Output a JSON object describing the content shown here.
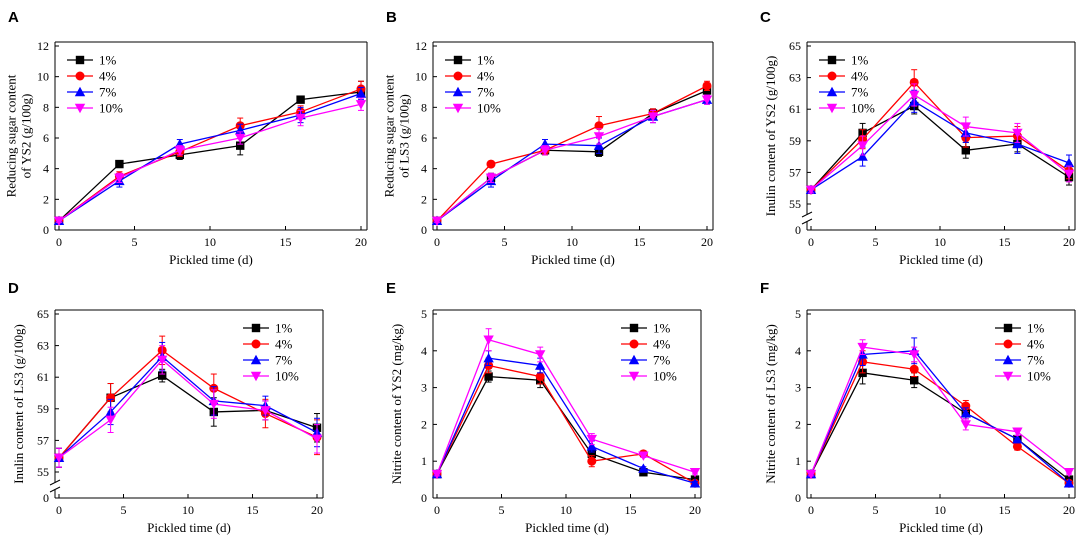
{
  "colors": {
    "s1": "#000000",
    "s4": "#ff0000",
    "s7": "#0000ff",
    "s10": "#ff00ff"
  },
  "chart_data": [
    {
      "type": "line",
      "letter": "A",
      "title": "",
      "xlabel": "Pickled time (d)",
      "ylabel": [
        "Reducing sugar content",
        "of YS2 (g/100g)"
      ],
      "x": [
        0,
        4,
        8,
        12,
        16,
        20
      ],
      "xlim": [
        0,
        20
      ],
      "xticks": [
        0,
        5,
        10,
        15,
        20
      ],
      "ylim": [
        0,
        12
      ],
      "yticks": [
        0,
        2,
        4,
        6,
        8,
        10,
        12
      ],
      "legend": "top-left",
      "series": [
        {
          "name": "1%",
          "values": [
            0.6,
            4.3,
            4.9,
            5.5,
            8.5,
            9.0
          ],
          "err": [
            0.1,
            0.2,
            0.3,
            0.6,
            0.2,
            0.7
          ]
        },
        {
          "name": "4%",
          "values": [
            0.6,
            3.5,
            5.1,
            6.8,
            7.7,
            9.2
          ],
          "err": [
            0.1,
            0.3,
            0.3,
            0.5,
            0.4,
            0.5
          ]
        },
        {
          "name": "7%",
          "values": [
            0.6,
            3.2,
            5.6,
            6.5,
            7.5,
            8.9
          ],
          "err": [
            0.1,
            0.4,
            0.3,
            0.4,
            0.5,
            0.4
          ]
        },
        {
          "name": "10%",
          "values": [
            0.6,
            3.4,
            5.2,
            6.0,
            7.3,
            8.2
          ],
          "err": [
            0.1,
            0.3,
            0.3,
            0.4,
            0.5,
            0.4
          ]
        }
      ]
    },
    {
      "type": "line",
      "letter": "B",
      "title": "",
      "xlabel": "Pickled time (d)",
      "ylabel": [
        "Reducing sugar content",
        "of LS3 (g/100g)"
      ],
      "x": [
        0,
        4,
        8,
        12,
        16,
        20
      ],
      "xlim": [
        0,
        20
      ],
      "xticks": [
        0,
        5,
        10,
        15,
        20
      ],
      "ylim": [
        0,
        12
      ],
      "yticks": [
        0,
        2,
        4,
        6,
        8,
        10,
        12
      ],
      "legend": "top-left",
      "series": [
        {
          "name": "1%",
          "values": [
            0.6,
            3.4,
            5.2,
            5.1,
            7.6,
            9.1
          ],
          "err": [
            0.1,
            0.3,
            0.3,
            0.3,
            0.3,
            0.4
          ]
        },
        {
          "name": "4%",
          "values": [
            0.6,
            4.3,
            5.2,
            6.8,
            7.6,
            9.4
          ],
          "err": [
            0.1,
            0.2,
            0.3,
            0.6,
            0.3,
            0.3
          ]
        },
        {
          "name": "7%",
          "values": [
            0.6,
            3.2,
            5.6,
            5.5,
            7.4,
            8.5
          ],
          "err": [
            0.1,
            0.4,
            0.3,
            0.5,
            0.4,
            0.3
          ]
        },
        {
          "name": "10%",
          "values": [
            0.6,
            3.4,
            5.2,
            6.1,
            7.4,
            8.5
          ],
          "err": [
            0.1,
            0.3,
            0.3,
            0.5,
            0.4,
            0.3
          ]
        }
      ]
    },
    {
      "type": "line",
      "letter": "C",
      "title": "",
      "xlabel": "Pickled time (d)",
      "ylabel": [
        "Inulin content of YS2 (g/100g)"
      ],
      "x": [
        0,
        4,
        8,
        12,
        16,
        20
      ],
      "xlim": [
        0,
        20
      ],
      "xticks": [
        0,
        5,
        10,
        15,
        20
      ],
      "ylim": [
        55,
        65
      ],
      "yticks": [
        55,
        57,
        59,
        61,
        63,
        65
      ],
      "broken_axis": {
        "bottom_label": "0"
      },
      "legend": "top-left",
      "series": [
        {
          "name": "1%",
          "values": [
            55.9,
            59.5,
            61.2,
            58.4,
            58.8,
            56.7
          ],
          "err": [
            0.2,
            0.6,
            0.5,
            0.5,
            0.5,
            0.5
          ]
        },
        {
          "name": "4%",
          "values": [
            55.9,
            59.1,
            62.7,
            59.2,
            59.3,
            57.1
          ],
          "err": [
            0.2,
            0.6,
            0.8,
            0.6,
            0.6,
            0.5
          ]
        },
        {
          "name": "7%",
          "values": [
            55.9,
            58.0,
            61.5,
            59.5,
            58.8,
            57.6
          ],
          "err": [
            0.2,
            0.6,
            0.7,
            0.6,
            0.6,
            0.5
          ]
        },
        {
          "name": "10%",
          "values": [
            55.9,
            58.7,
            61.9,
            59.9,
            59.5,
            56.9
          ],
          "err": [
            0.2,
            0.6,
            0.7,
            0.6,
            0.6,
            0.5
          ]
        }
      ]
    },
    {
      "type": "line",
      "letter": "D",
      "title": "",
      "xlabel": "Pickled time (d)",
      "ylabel": [
        "Inulin content of LS3 (g/100g)"
      ],
      "x": [
        0,
        4,
        8,
        12,
        16,
        20
      ],
      "xlim": [
        0,
        20
      ],
      "xticks": [
        0,
        5,
        10,
        15,
        20
      ],
      "ylim": [
        55,
        65
      ],
      "yticks": [
        55,
        57,
        59,
        61,
        63,
        65
      ],
      "broken_axis": {
        "bottom_label": "0"
      },
      "legend": "top-right",
      "series": [
        {
          "name": "1%",
          "values": [
            55.9,
            59.7,
            61.1,
            58.8,
            58.9,
            57.8
          ],
          "err": [
            0.6,
            0.9,
            0.4,
            0.9,
            0.6,
            0.9
          ]
        },
        {
          "name": "4%",
          "values": [
            55.9,
            59.7,
            62.7,
            60.3,
            58.7,
            57.2
          ],
          "err": [
            0.6,
            0.9,
            0.9,
            0.9,
            0.9,
            1.1
          ]
        },
        {
          "name": "7%",
          "values": [
            55.9,
            58.8,
            62.3,
            59.5,
            59.2,
            57.5
          ],
          "err": [
            0.6,
            0.8,
            0.9,
            0.9,
            0.6,
            0.9
          ]
        },
        {
          "name": "10%",
          "values": [
            55.9,
            58.3,
            62.1,
            59.3,
            58.9,
            57.1
          ],
          "err": [
            0.6,
            0.8,
            0.9,
            0.9,
            0.6,
            0.9
          ]
        }
      ]
    },
    {
      "type": "line",
      "letter": "E",
      "title": "",
      "xlabel": "Pickled time (d)",
      "ylabel": [
        "Nitrite content of YS2 (mg/kg)"
      ],
      "x": [
        0,
        4,
        8,
        12,
        16,
        20
      ],
      "xlim": [
        0,
        20
      ],
      "xticks": [
        0,
        5,
        10,
        15,
        20
      ],
      "ylim": [
        0,
        5
      ],
      "yticks": [
        0,
        1,
        2,
        3,
        4,
        5
      ],
      "legend": "top-right",
      "series": [
        {
          "name": "1%",
          "values": [
            0.65,
            3.3,
            3.2,
            1.2,
            0.7,
            0.5
          ],
          "err": [
            0.05,
            0.15,
            0.2,
            0.15,
            0.05,
            0.05
          ]
        },
        {
          "name": "4%",
          "values": [
            0.65,
            3.6,
            3.3,
            1.0,
            1.2,
            0.4
          ],
          "err": [
            0.05,
            0.2,
            0.2,
            0.15,
            0.05,
            0.05
          ]
        },
        {
          "name": "7%",
          "values": [
            0.65,
            3.8,
            3.6,
            1.4,
            0.8,
            0.4
          ],
          "err": [
            0.05,
            0.2,
            0.2,
            0.15,
            0.05,
            0.05
          ]
        },
        {
          "name": "10%",
          "values": [
            0.65,
            4.3,
            3.9,
            1.6,
            1.15,
            0.7
          ],
          "err": [
            0.05,
            0.3,
            0.2,
            0.15,
            0.05,
            0.05
          ]
        }
      ]
    },
    {
      "type": "line",
      "letter": "F",
      "title": "",
      "xlabel": "Pickled time (d)",
      "ylabel": [
        "Nitrite content of LS3 (mg/kg)"
      ],
      "x": [
        0,
        4,
        8,
        12,
        16,
        20
      ],
      "xlim": [
        0,
        20
      ],
      "xticks": [
        0,
        5,
        10,
        15,
        20
      ],
      "ylim": [
        0,
        5
      ],
      "yticks": [
        0,
        1,
        2,
        3,
        4,
        5
      ],
      "legend": "top-right",
      "series": [
        {
          "name": "1%",
          "values": [
            0.65,
            3.4,
            3.2,
            2.3,
            1.6,
            0.5
          ],
          "err": [
            0.05,
            0.3,
            0.2,
            0.15,
            0.1,
            0.05
          ]
        },
        {
          "name": "4%",
          "values": [
            0.65,
            3.7,
            3.5,
            2.5,
            1.4,
            0.4
          ],
          "err": [
            0.05,
            0.3,
            0.2,
            0.15,
            0.1,
            0.05
          ]
        },
        {
          "name": "7%",
          "values": [
            0.65,
            3.9,
            4.0,
            2.3,
            1.6,
            0.4
          ],
          "err": [
            0.05,
            0.3,
            0.35,
            0.15,
            0.1,
            0.05
          ]
        },
        {
          "name": "10%",
          "values": [
            0.65,
            4.1,
            3.9,
            2.0,
            1.8,
            0.7
          ],
          "err": [
            0.05,
            0.2,
            0.2,
            0.15,
            0.1,
            0.05
          ]
        }
      ]
    }
  ]
}
